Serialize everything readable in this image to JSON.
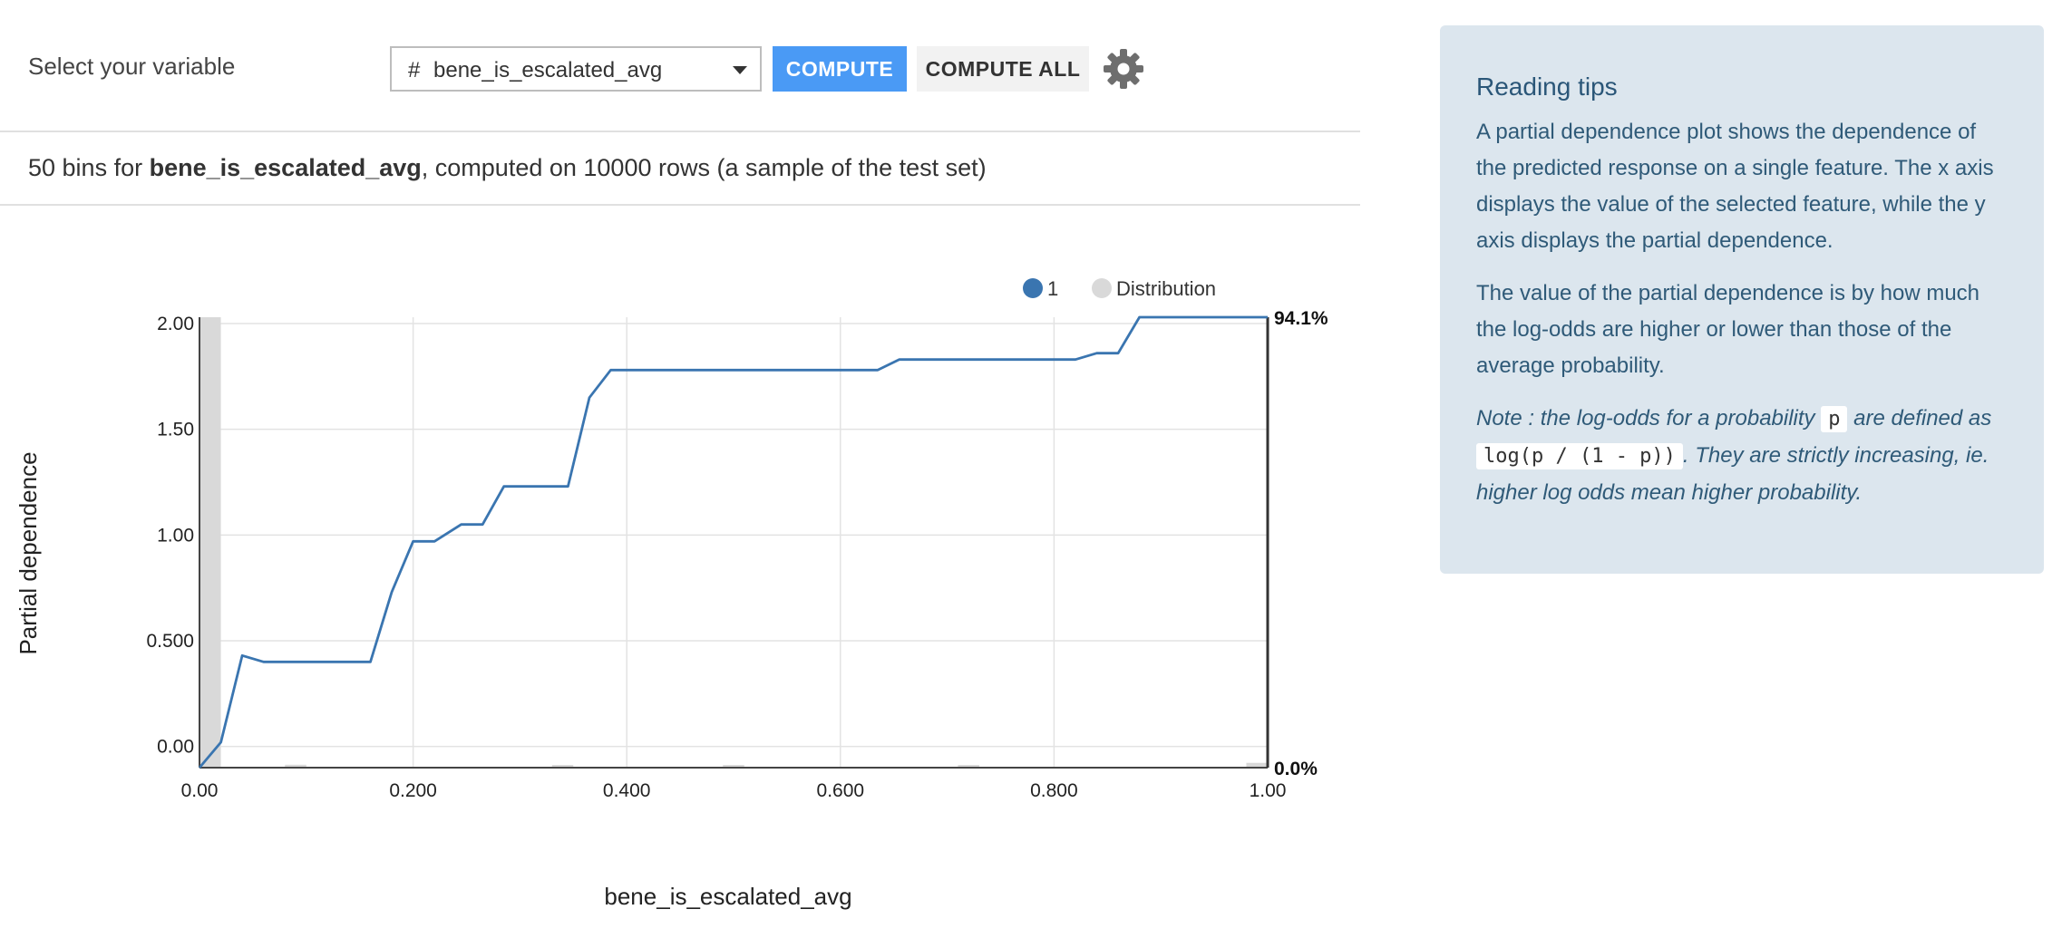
{
  "toolbar": {
    "select_label": "Select your variable",
    "variable_type_icon": "#",
    "variable_value": "bene_is_escalated_avg",
    "compute_label": "COMPUTE",
    "compute_all_label": "COMPUTE ALL",
    "settings_icon": "gear-icon"
  },
  "summary": {
    "bins_prefix": "50 bins for ",
    "feature": "bene_is_escalated_avg",
    "suffix": ", computed on 10000 rows (a sample of the test set)"
  },
  "tips": {
    "title": "Reading tips",
    "p1": "A partial dependence plot shows the dependence of the predicted response on a single feature. The x axis displays the value of the selected feature, while the y axis displays the partial dependence.",
    "p2": "The value of the partial dependence is by how much the log-odds are higher or lower than those of the average probability.",
    "note_a": "Note : the log-odds for a probability ",
    "note_code1": "p",
    "note_b": " are defined as ",
    "note_code2": "log(p / (1 - p))",
    "note_c": ". They are strictly increasing, ie. higher log odds mean higher probability."
  },
  "colors": {
    "line": "#3a75b0",
    "distribution": "#d9d9d9",
    "compute_button": "#4a9af5",
    "tips_background": "#dce6ee"
  },
  "chart_data": {
    "type": "line",
    "xlabel": "bene_is_escalated_avg",
    "ylabel": "Partial dependence",
    "xlim": [
      0,
      1
    ],
    "ylim": [
      -0.1,
      2.03
    ],
    "xticks": [
      "0.00",
      "0.200",
      "0.400",
      "0.600",
      "0.800",
      "1.00"
    ],
    "yticks": [
      "0.00",
      "0.500",
      "1.00",
      "1.50",
      "2.00"
    ],
    "right_axis_labels": {
      "top": "94.1%",
      "bottom": "0.0%"
    },
    "grid": true,
    "legend_position": "top-right",
    "series": [
      {
        "name": "1",
        "x": [
          0.0,
          0.02,
          0.04,
          0.06,
          0.08,
          0.1,
          0.12,
          0.14,
          0.16,
          0.18,
          0.2,
          0.22,
          0.245,
          0.265,
          0.285,
          0.305,
          0.325,
          0.345,
          0.365,
          0.385,
          0.405,
          0.43,
          0.46,
          0.5,
          0.55,
          0.6,
          0.635,
          0.655,
          0.7,
          0.75,
          0.8,
          0.82,
          0.84,
          0.86,
          0.88,
          0.9,
          0.95,
          1.0
        ],
        "y": [
          -0.1,
          0.02,
          0.43,
          0.4,
          0.4,
          0.4,
          0.4,
          0.4,
          0.4,
          0.73,
          0.97,
          0.97,
          1.05,
          1.05,
          1.23,
          1.23,
          1.23,
          1.23,
          1.65,
          1.78,
          1.78,
          1.78,
          1.78,
          1.78,
          1.78,
          1.78,
          1.78,
          1.83,
          1.83,
          1.83,
          1.83,
          1.83,
          1.86,
          1.86,
          2.03,
          2.03,
          2.03,
          2.03
        ]
      },
      {
        "name": "Distribution",
        "x": [
          0.01,
          0.09,
          0.34,
          0.5,
          0.72,
          0.99
        ],
        "y": [
          0.941,
          0.006,
          0.003,
          0.004,
          0.002,
          0.01
        ]
      }
    ]
  }
}
